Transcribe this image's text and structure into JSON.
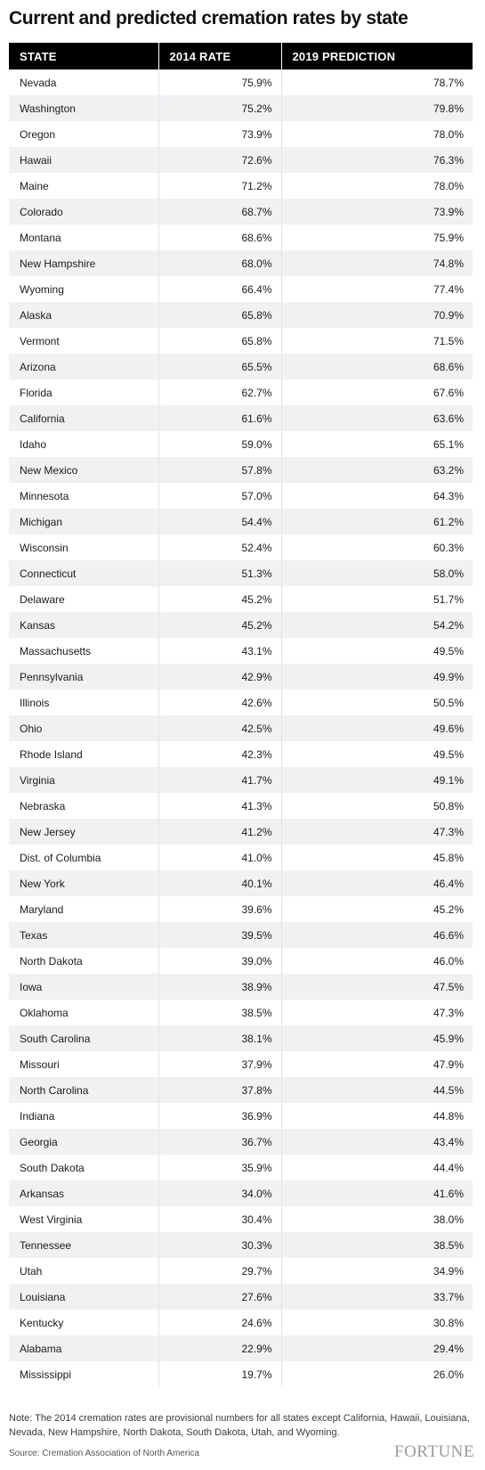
{
  "title": "Current and predicted cremation rates by state",
  "columns": [
    "STATE",
    "2014 RATE",
    "2019 PREDICTION"
  ],
  "rows": [
    [
      "Nevada",
      "75.9%",
      "78.7%"
    ],
    [
      "Washington",
      "75.2%",
      "79.8%"
    ],
    [
      "Oregon",
      "73.9%",
      "78.0%"
    ],
    [
      "Hawaii",
      "72.6%",
      "76.3%"
    ],
    [
      "Maine",
      "71.2%",
      "78.0%"
    ],
    [
      "Colorado",
      "68.7%",
      "73.9%"
    ],
    [
      "Montana",
      "68.6%",
      "75.9%"
    ],
    [
      "New Hampshire",
      "68.0%",
      "74.8%"
    ],
    [
      "Wyoming",
      "66.4%",
      "77.4%"
    ],
    [
      "Alaska",
      "65.8%",
      "70.9%"
    ],
    [
      "Vermont",
      "65.8%",
      "71.5%"
    ],
    [
      "Arizona",
      "65.5%",
      "68.6%"
    ],
    [
      "Florida",
      "62.7%",
      "67.6%"
    ],
    [
      "California",
      "61.6%",
      "63.6%"
    ],
    [
      "Idaho",
      "59.0%",
      "65.1%"
    ],
    [
      "New Mexico",
      "57.8%",
      "63.2%"
    ],
    [
      "Minnesota",
      "57.0%",
      "64.3%"
    ],
    [
      "Michigan",
      "54.4%",
      "61.2%"
    ],
    [
      "Wisconsin",
      "52.4%",
      "60.3%"
    ],
    [
      "Connecticut",
      "51.3%",
      "58.0%"
    ],
    [
      "Delaware",
      "45.2%",
      "51.7%"
    ],
    [
      "Kansas",
      "45.2%",
      "54.2%"
    ],
    [
      "Massachusetts",
      "43.1%",
      "49.5%"
    ],
    [
      "Pennsylvania",
      "42.9%",
      "49.9%"
    ],
    [
      "Illinois",
      "42.6%",
      "50.5%"
    ],
    [
      "Ohio",
      "42.5%",
      "49.6%"
    ],
    [
      "Rhode Island",
      "42.3%",
      "49.5%"
    ],
    [
      "Virginia",
      "41.7%",
      "49.1%"
    ],
    [
      "Nebraska",
      "41.3%",
      "50.8%"
    ],
    [
      "New Jersey",
      "41.2%",
      "47.3%"
    ],
    [
      "Dist. of Columbia",
      "41.0%",
      "45.8%"
    ],
    [
      "New York",
      "40.1%",
      "46.4%"
    ],
    [
      "Maryland",
      "39.6%",
      "45.2%"
    ],
    [
      "Texas",
      "39.5%",
      "46.6%"
    ],
    [
      "North Dakota",
      "39.0%",
      "46.0%"
    ],
    [
      "Iowa",
      "38.9%",
      "47.5%"
    ],
    [
      "Oklahoma",
      "38.5%",
      "47.3%"
    ],
    [
      "South Carolina",
      "38.1%",
      "45.9%"
    ],
    [
      "Missouri",
      "37.9%",
      "47.9%"
    ],
    [
      "North Carolina",
      "37.8%",
      "44.5%"
    ],
    [
      "Indiana",
      "36.9%",
      "44.8%"
    ],
    [
      "Georgia",
      "36.7%",
      "43.4%"
    ],
    [
      "South Dakota",
      "35.9%",
      "44.4%"
    ],
    [
      "Arkansas",
      "34.0%",
      "41.6%"
    ],
    [
      "West Virginia",
      "30.4%",
      "38.0%"
    ],
    [
      "Tennessee",
      "30.3%",
      "38.5%"
    ],
    [
      "Utah",
      "29.7%",
      "34.9%"
    ],
    [
      "Louisiana",
      "27.6%",
      "33.7%"
    ],
    [
      "Kentucky",
      "24.6%",
      "30.8%"
    ],
    [
      "Alabama",
      "22.9%",
      "29.4%"
    ],
    [
      "Mississippi",
      "19.7%",
      "26.0%"
    ]
  ],
  "note": "Note: The 2014 cremation rates are provisional numbers for all states except California, Hawaii, Louisiana, Nevada, New Hampshire, North Dakota, South Dakota, Utah, and Wyoming.",
  "source": "Source: Cremation Association of North America",
  "logo_text": "FORTUNE",
  "colors": {
    "header_bg": "#000000",
    "header_text": "#ffffff",
    "stripe": "#f1f1f4"
  },
  "chart_data": {
    "type": "table",
    "title": "Current and predicted cremation rates by state",
    "columns": [
      "STATE",
      "2014 RATE",
      "2019 PREDICTION"
    ],
    "categories": [
      "Nevada",
      "Washington",
      "Oregon",
      "Hawaii",
      "Maine",
      "Colorado",
      "Montana",
      "New Hampshire",
      "Wyoming",
      "Alaska",
      "Vermont",
      "Arizona",
      "Florida",
      "California",
      "Idaho",
      "New Mexico",
      "Minnesota",
      "Michigan",
      "Wisconsin",
      "Connecticut",
      "Delaware",
      "Kansas",
      "Massachusetts",
      "Pennsylvania",
      "Illinois",
      "Ohio",
      "Rhode Island",
      "Virginia",
      "Nebraska",
      "New Jersey",
      "Dist. of Columbia",
      "New York",
      "Maryland",
      "Texas",
      "North Dakota",
      "Iowa",
      "Oklahoma",
      "South Carolina",
      "Missouri",
      "North Carolina",
      "Indiana",
      "Georgia",
      "South Dakota",
      "Arkansas",
      "West Virginia",
      "Tennessee",
      "Utah",
      "Louisiana",
      "Kentucky",
      "Alabama",
      "Mississippi"
    ],
    "series": [
      {
        "name": "2014 RATE",
        "values": [
          75.9,
          75.2,
          73.9,
          72.6,
          71.2,
          68.7,
          68.6,
          68.0,
          66.4,
          65.8,
          65.8,
          65.5,
          62.7,
          61.6,
          59.0,
          57.8,
          57.0,
          54.4,
          52.4,
          51.3,
          45.2,
          45.2,
          43.1,
          42.9,
          42.6,
          42.5,
          42.3,
          41.7,
          41.3,
          41.2,
          41.0,
          40.1,
          39.6,
          39.5,
          39.0,
          38.9,
          38.5,
          38.1,
          37.9,
          37.8,
          36.9,
          36.7,
          35.9,
          34.0,
          30.4,
          30.3,
          29.7,
          27.6,
          24.6,
          22.9,
          19.7
        ]
      },
      {
        "name": "2019 PREDICTION",
        "values": [
          78.7,
          79.8,
          78.0,
          76.3,
          78.0,
          73.9,
          75.9,
          74.8,
          77.4,
          70.9,
          71.5,
          68.6,
          67.6,
          63.6,
          65.1,
          63.2,
          64.3,
          61.2,
          60.3,
          58.0,
          51.7,
          54.2,
          49.5,
          49.9,
          50.5,
          49.6,
          49.5,
          49.1,
          50.8,
          47.3,
          45.8,
          46.4,
          45.2,
          46.6,
          46.0,
          47.5,
          47.3,
          45.9,
          47.9,
          44.5,
          44.8,
          43.4,
          44.4,
          41.6,
          38.0,
          38.5,
          34.9,
          33.7,
          30.8,
          29.4,
          26.0
        ]
      }
    ]
  }
}
